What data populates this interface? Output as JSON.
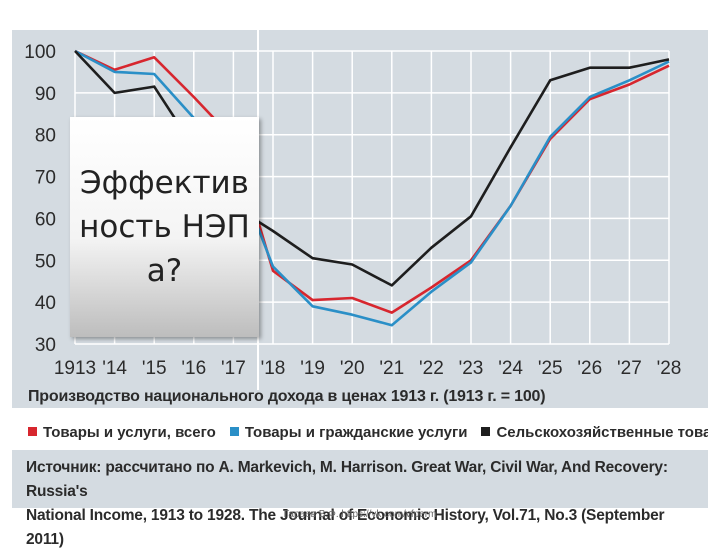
{
  "chart_data": {
    "type": "line",
    "title": "",
    "xlabel": "",
    "ylabel": "",
    "x": [
      1913,
      1914,
      1915,
      1916,
      1917,
      1918,
      1919,
      1920,
      1921,
      1922,
      1923,
      1924,
      1925,
      1926,
      1927,
      1928
    ],
    "x_tick_labels": [
      "1913",
      "'14",
      "'15",
      "'16",
      "'17",
      "'18",
      "'19",
      "'20",
      "'21",
      "'22",
      "'23",
      "'24",
      "'25",
      "'26",
      "'27",
      "'28"
    ],
    "ylim": [
      30,
      100
    ],
    "y_ticks": [
      100,
      90,
      80,
      70,
      60,
      50,
      40,
      30
    ],
    "grid": true,
    "legend_position": "bottom",
    "series": [
      {
        "name": "Товары и услуги, всего",
        "color": "#d7262e",
        "values": [
          100,
          95.5,
          98.5,
          89,
          79,
          47.5,
          40.5,
          41,
          37.5,
          43.5,
          50,
          63,
          79,
          88.5,
          92,
          96.5
        ]
      },
      {
        "name": "Товары и гражданские услуги",
        "color": "#2a8fc7",
        "values": [
          100,
          95,
          94.5,
          84,
          73,
          48.5,
          39,
          37,
          34.5,
          42.5,
          49.5,
          63,
          79.5,
          89,
          93,
          97.5
        ]
      },
      {
        "name": "Сельскохозяйственные товары",
        "color": "#1e1e1e",
        "values": [
          100,
          90,
          91.5,
          77,
          63,
          57,
          50.5,
          49,
          44,
          53,
          60.5,
          77,
          93,
          96,
          96,
          98
        ]
      }
    ]
  },
  "caption": "Производство национального дохода в ценах 1913 г. (1913 г. = 100)",
  "source_line1": "Источник: рассчитано по A. Markevich, M. Harrison. Great War, Civil War, And Recovery: Russia's",
  "source_line2": "National Income, 1913 to 1928. The Journal of Economic History, Vol.71, No.3 (September 2011)",
  "overlay_title": "Эффективность НЭПа?",
  "credit": "Гараев В.Ф. https://vk.com/vfperm"
}
